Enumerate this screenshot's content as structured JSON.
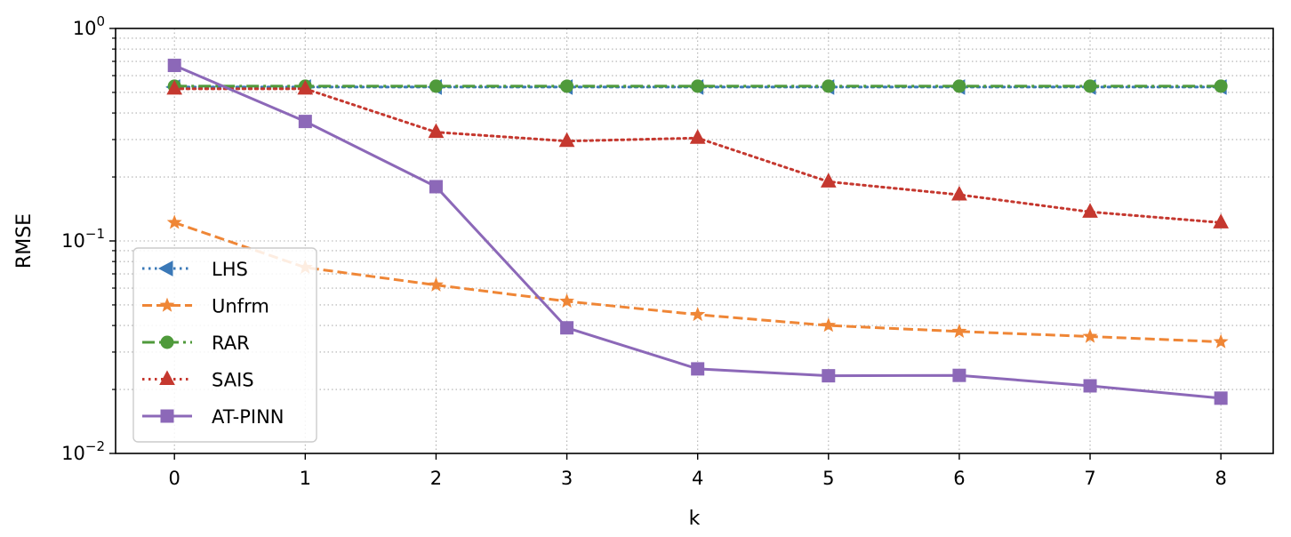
{
  "chart_data": {
    "type": "line",
    "title": "",
    "xlabel": "k",
    "ylabel": "RMSE",
    "yscale": "log",
    "ylim": [
      0.01,
      1
    ],
    "xlim": [
      -0.45,
      8.4
    ],
    "grid": true,
    "legend_position": "lower-left",
    "x": [
      0,
      1,
      2,
      3,
      4,
      5,
      6,
      7,
      8
    ],
    "x_tick_labels": [
      "0",
      "1",
      "2",
      "3",
      "4",
      "5",
      "6",
      "7",
      "8"
    ],
    "y_tick_labels": [
      {
        "value": 1,
        "base": "10",
        "exp": "0"
      },
      {
        "value": 0.1,
        "base": "10",
        "exp": "−1"
      },
      {
        "value": 0.01,
        "base": "10",
        "exp": "−2"
      }
    ],
    "series": [
      {
        "name": "LHS",
        "color": "#3a78b7",
        "linestyle": "dotted",
        "marker": "triangle-left",
        "values": [
          0.53,
          0.53,
          0.53,
          0.53,
          0.53,
          0.53,
          0.53,
          0.53,
          0.53
        ]
      },
      {
        "name": "Unfrm",
        "color": "#ef8636",
        "linestyle": "dashed",
        "marker": "star",
        "values": [
          0.122,
          0.075,
          0.062,
          0.052,
          0.045,
          0.04,
          0.0375,
          0.0355,
          0.0335
        ]
      },
      {
        "name": "RAR",
        "color": "#4f9a3b",
        "linestyle": "dashdot",
        "marker": "circle",
        "values": [
          0.535,
          0.535,
          0.535,
          0.535,
          0.535,
          0.535,
          0.535,
          0.535,
          0.535
        ]
      },
      {
        "name": "SAIS",
        "color": "#c5382f",
        "linestyle": "dotted",
        "marker": "triangle-up",
        "values": [
          0.52,
          0.52,
          0.325,
          0.295,
          0.305,
          0.19,
          0.165,
          0.137,
          0.122
        ]
      },
      {
        "name": "AT-PINN",
        "color": "#8c68b8",
        "linestyle": "solid",
        "marker": "square",
        "values": [
          0.67,
          0.365,
          0.18,
          0.039,
          0.025,
          0.0232,
          0.0233,
          0.0208,
          0.0182
        ]
      }
    ]
  }
}
